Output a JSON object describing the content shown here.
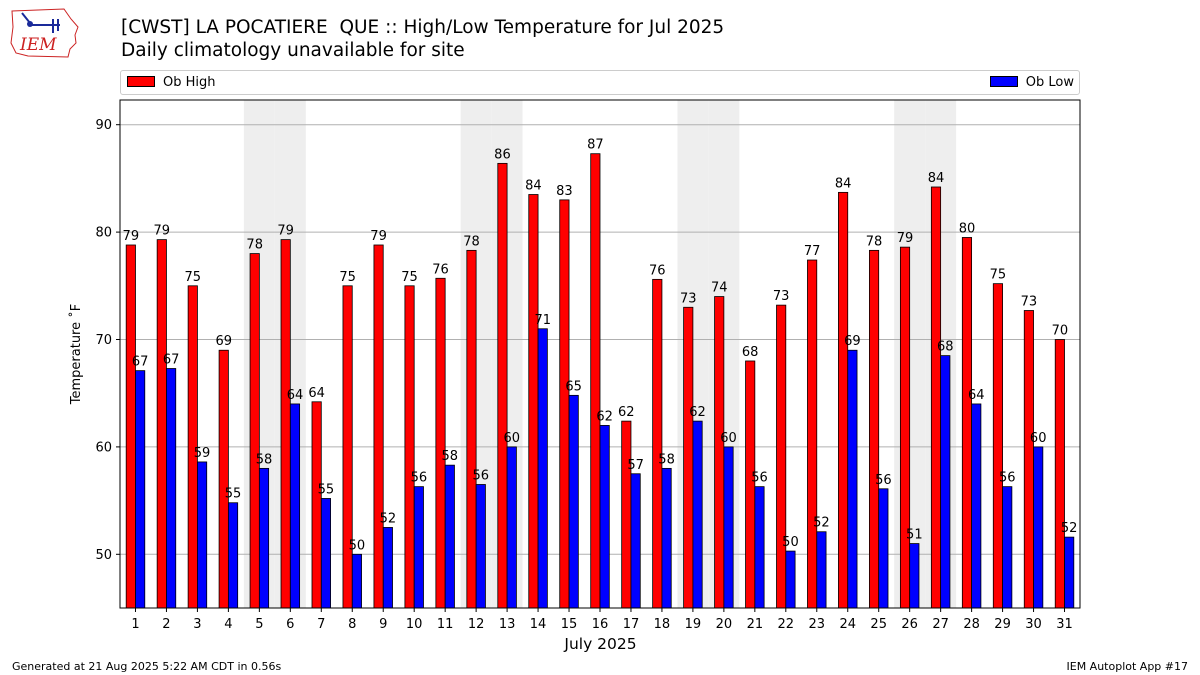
{
  "title_line1": "[CWST] LA POCATIERE  QUE :: High/Low Temperature for Jul 2025",
  "title_line2": "Daily climatology unavailable for site",
  "footer_left": "Generated at 21 Aug 2025 5:22 AM CDT in 0.56s",
  "footer_right": "IEM Autoplot App #17",
  "logo_text": "IEM",
  "colors": {
    "high": "#ff0000",
    "low": "#0000ff",
    "weekend_band": "#eeeeee",
    "grid": "#b0b0b0",
    "logo": "#cc2222"
  },
  "chart_data": {
    "type": "bar",
    "xlabel": "July 2025",
    "ylabel": "Temperature ˚F",
    "ylim": [
      45,
      92.3
    ],
    "yticks": [
      50,
      60,
      70,
      80,
      90
    ],
    "grid": "horizontal",
    "legend_placement": "top",
    "categories": [
      "1",
      "2",
      "3",
      "4",
      "5",
      "6",
      "7",
      "8",
      "9",
      "10",
      "11",
      "12",
      "13",
      "14",
      "15",
      "16",
      "17",
      "18",
      "19",
      "20",
      "21",
      "22",
      "23",
      "24",
      "25",
      "26",
      "27",
      "28",
      "29",
      "30",
      "31"
    ],
    "shaded_days": [
      "5",
      "6",
      "12",
      "13",
      "19",
      "20",
      "26",
      "27"
    ],
    "series": [
      {
        "name": "Ob High",
        "color": "#ff0000",
        "values": [
          78.8,
          79.3,
          75.0,
          69.0,
          78.0,
          79.3,
          64.2,
          75.0,
          78.8,
          75.0,
          75.7,
          78.3,
          86.4,
          83.5,
          83.0,
          87.3,
          62.4,
          75.6,
          73.0,
          74.0,
          68.0,
          73.2,
          77.4,
          83.7,
          78.3,
          78.6,
          84.2,
          79.5,
          75.2,
          72.7,
          70.0
        ],
        "labels": [
          "79",
          "79",
          "75",
          "69",
          "78",
          "79",
          "64",
          "75",
          "79",
          "75",
          "76",
          "78",
          "86",
          "84",
          "83",
          "87",
          "62",
          "76",
          "73",
          "74",
          "68",
          "73",
          "77",
          "84",
          "78",
          "79",
          "84",
          "80",
          "75",
          "73",
          "70"
        ]
      },
      {
        "name": "Ob Low",
        "color": "#0000ff",
        "values": [
          67.1,
          67.3,
          58.6,
          54.8,
          58.0,
          64.0,
          55.2,
          50.0,
          52.5,
          56.3,
          58.3,
          56.5,
          60.0,
          71.0,
          64.8,
          62.0,
          57.5,
          58.0,
          62.4,
          60.0,
          56.3,
          50.3,
          52.1,
          69.0,
          56.1,
          51.0,
          68.5,
          64.0,
          56.3,
          60.0,
          51.6
        ],
        "labels": [
          "67",
          "67",
          "59",
          "55",
          "58",
          "64",
          "55",
          "50",
          "52",
          "56",
          "58",
          "56",
          "60",
          "71",
          "65",
          "62",
          "57",
          "58",
          "62",
          "60",
          "56",
          "50",
          "52",
          "69",
          "56",
          "51",
          "68",
          "64",
          "56",
          "60",
          "52"
        ]
      }
    ]
  }
}
